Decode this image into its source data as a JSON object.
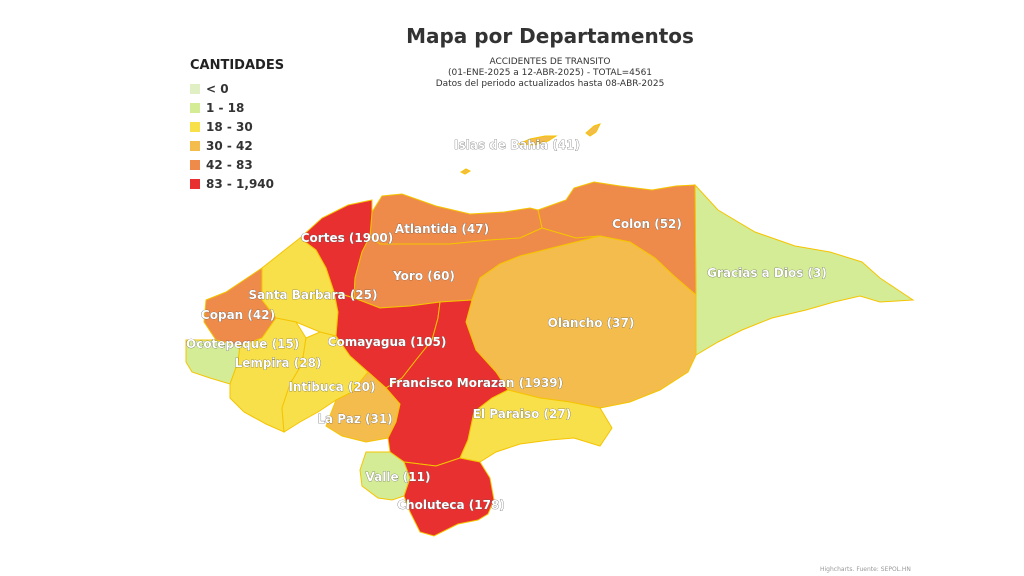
{
  "title": "Mapa por Departamentos",
  "subtitle": {
    "line1": "ACCIDENTES DE TRANSITO",
    "line2": "(01-ENE-2025 a 12-ABR-2025) - TOTAL=4561",
    "line3": "Datos del periodo actualizados hasta 08-ABR-2025"
  },
  "legend": {
    "title": "CANTIDADES",
    "items": [
      {
        "label": "< 0",
        "color": "#e0f0c4"
      },
      {
        "label": "1 - 18",
        "color": "#d4ec96"
      },
      {
        "label": "18 - 30",
        "color": "#f8e04a"
      },
      {
        "label": "30 - 42",
        "color": "#f4bc4c"
      },
      {
        "label": "42 - 83",
        "color": "#ee8a4a"
      },
      {
        "label": "83 - 1,940",
        "color": "#e83030"
      }
    ]
  },
  "departments": [
    {
      "id": "islas",
      "label": "Islas de Bahia (41)",
      "color": "#f4bc4c"
    },
    {
      "id": "cortes",
      "label": "Cortes (1900)",
      "color": "#e83030"
    },
    {
      "id": "atlantida",
      "label": "Atlantida (47)",
      "color": "#ee8a4a"
    },
    {
      "id": "colon",
      "label": "Colon (52)",
      "color": "#ee8a4a"
    },
    {
      "id": "gracias",
      "label": "Gracias a Dios (3)",
      "color": "#d4ec96"
    },
    {
      "id": "yoro",
      "label": "Yoro (60)",
      "color": "#ee8a4a"
    },
    {
      "id": "santabarbara",
      "label": "Santa Barbara (25)",
      "color": "#f8e04a"
    },
    {
      "id": "copan",
      "label": "Copan (42)",
      "color": "#ee8a4a"
    },
    {
      "id": "olancho",
      "label": "Olancho (37)",
      "color": "#f4bc4c"
    },
    {
      "id": "ocotepeque",
      "label": "Ocotepeque (15)",
      "color": "#d4ec96"
    },
    {
      "id": "comayagua",
      "label": "Comayagua (105)",
      "color": "#e83030"
    },
    {
      "id": "lempira",
      "label": "Lempira (28)",
      "color": "#f8e04a"
    },
    {
      "id": "intibuca",
      "label": "Intibuca (20)",
      "color": "#f8e04a"
    },
    {
      "id": "fmorazan",
      "label": "Francisco Morazan (1939)",
      "color": "#e83030"
    },
    {
      "id": "paraiso",
      "label": "El Paraiso (27)",
      "color": "#f8e04a"
    },
    {
      "id": "lapaz",
      "label": "La Paz (31)",
      "color": "#f4bc4c"
    },
    {
      "id": "valle",
      "label": "Valle (11)",
      "color": "#d4ec96"
    },
    {
      "id": "choluteca",
      "label": "Choluteca (178)",
      "color": "#e83030"
    }
  ],
  "credits": "Highcharts. Fuente: SEPOL.HN"
}
